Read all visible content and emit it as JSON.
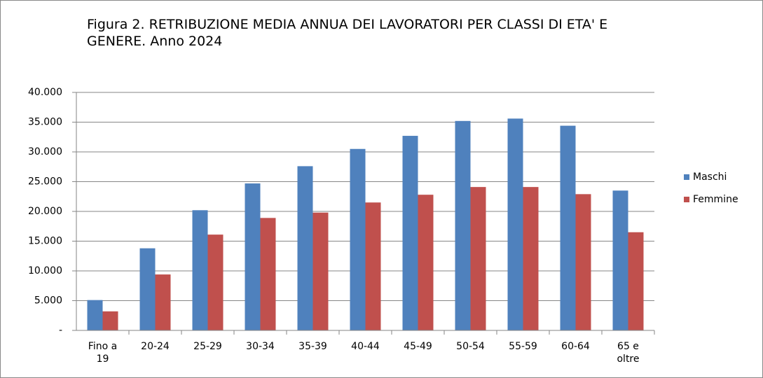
{
  "chart_data": {
    "type": "bar",
    "title": "Figura 2. RETRIBUZIONE MEDIA ANNUA DEI LAVORATORI PER CLASSI DI ETA' E GENERE. Anno 2024",
    "categories": [
      "Fino a 19",
      "20-24",
      "25-29",
      "30-34",
      "35-39",
      "40-44",
      "45-49",
      "50-54",
      "55-59",
      "60-64",
      "65 e oltre"
    ],
    "series": [
      {
        "name": "Maschi",
        "color": "#4f81bd",
        "values": [
          5100,
          13800,
          20200,
          24700,
          27600,
          30500,
          32700,
          35200,
          35600,
          34400,
          23500
        ]
      },
      {
        "name": "Femmine",
        "color": "#c0504d",
        "values": [
          3200,
          9400,
          16100,
          18900,
          19800,
          21500,
          22800,
          24100,
          24100,
          22900,
          16500
        ]
      }
    ],
    "ylim": [
      0,
      40000
    ],
    "yticks": [
      {
        "value": 0,
        "label": "-"
      },
      {
        "value": 5000,
        "label": "5.000"
      },
      {
        "value": 10000,
        "label": "10.000"
      },
      {
        "value": 15000,
        "label": "15.000"
      },
      {
        "value": 20000,
        "label": "20.000"
      },
      {
        "value": 25000,
        "label": "25.000"
      },
      {
        "value": 30000,
        "label": "30.000"
      },
      {
        "value": 35000,
        "label": "35.000"
      },
      {
        "value": 40000,
        "label": "40.000"
      }
    ],
    "grid": true,
    "legend": "right"
  }
}
